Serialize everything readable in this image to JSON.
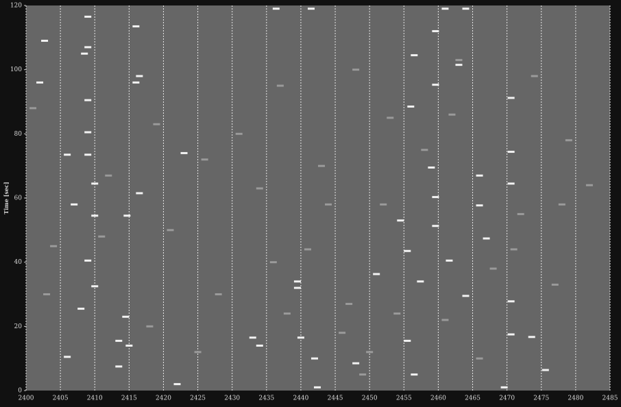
{
  "chart_data": {
    "type": "scatter",
    "y_label": "Time [sec]",
    "xlim": [
      2400,
      2485
    ],
    "ylim": [
      0,
      120
    ],
    "xticks": [
      2400,
      2405,
      2410,
      2415,
      2420,
      2425,
      2430,
      2435,
      2440,
      2445,
      2450,
      2455,
      2460,
      2465,
      2470,
      2475,
      2480,
      2485
    ],
    "yticks": [
      0,
      20,
      40,
      60,
      80,
      100,
      120
    ],
    "grid": true,
    "background": "#666666",
    "series": [
      {
        "color": "#f2f2f2",
        "x": [
          2409,
          2402.7,
          2408.5,
          2409,
          2416,
          2416.5,
          2416,
          2402,
          2409,
          2409,
          2406,
          2409,
          2410,
          2416.5,
          2407,
          2410,
          2414.7,
          2409,
          2410,
          2408,
          2414.5,
          2413.5,
          2415,
          2413.5,
          2406,
          2422,
          2433,
          2434,
          2440,
          2442.4,
          2442,
          2439.5,
          2439.5,
          2436.4,
          2441.5,
          2456.5,
          2456,
          2454.5,
          2455.5,
          2457.4,
          2456.5,
          2455.5,
          2459.6,
          2463,
          2459.6,
          2459.6,
          2459,
          2459.6,
          2461.6,
          2464,
          2466,
          2466,
          2467,
          2470.6,
          2470.6,
          2470.6,
          2470.6,
          2470.6,
          2475.6,
          2473.6,
          2464,
          2461,
          2469.6,
          2448,
          2451,
          2423
        ],
        "values": [
          116.5,
          109,
          105,
          107,
          113.5,
          98,
          96,
          96,
          90.5,
          80.5,
          73.5,
          73.5,
          64.5,
          61.5,
          58,
          54.5,
          54.5,
          40.5,
          32.5,
          25.5,
          23,
          15.5,
          14,
          7.5,
          10.5,
          2,
          16.5,
          14,
          16.5,
          1,
          10,
          32,
          34,
          119,
          119,
          104.5,
          88.5,
          53,
          43.5,
          34,
          5,
          15.5,
          112,
          101.5,
          95.3,
          60.3,
          69.5,
          51.3,
          40.5,
          29.5,
          67,
          57.7,
          47.4,
          91.2,
          64.5,
          74.4,
          27.8,
          17.5,
          6.4,
          16.7,
          119,
          119,
          1,
          8.5,
          36.3,
          74
        ]
      },
      {
        "color": "#9a9a9a",
        "x": [
          2401,
          2404,
          2412,
          2418,
          2421,
          2425,
          2428,
          2431,
          2434,
          2437,
          2438,
          2441,
          2443,
          2446,
          2447,
          2449,
          2450,
          2452,
          2453,
          2458,
          2461,
          2463,
          2466,
          2468,
          2472,
          2474,
          2477,
          2479,
          2482,
          2403,
          2411,
          2419,
          2426,
          2436,
          2444,
          2448,
          2454,
          2462,
          2471,
          2478
        ],
        "values": [
          88,
          45,
          67,
          20,
          50,
          12,
          30,
          80,
          63,
          95,
          24,
          44,
          70,
          18,
          27,
          5,
          12,
          58,
          85,
          75,
          22,
          103,
          10,
          38,
          55,
          98,
          33,
          78,
          64,
          30,
          48,
          83,
          72,
          40,
          58,
          100,
          24,
          86,
          44,
          58
        ]
      }
    ]
  }
}
